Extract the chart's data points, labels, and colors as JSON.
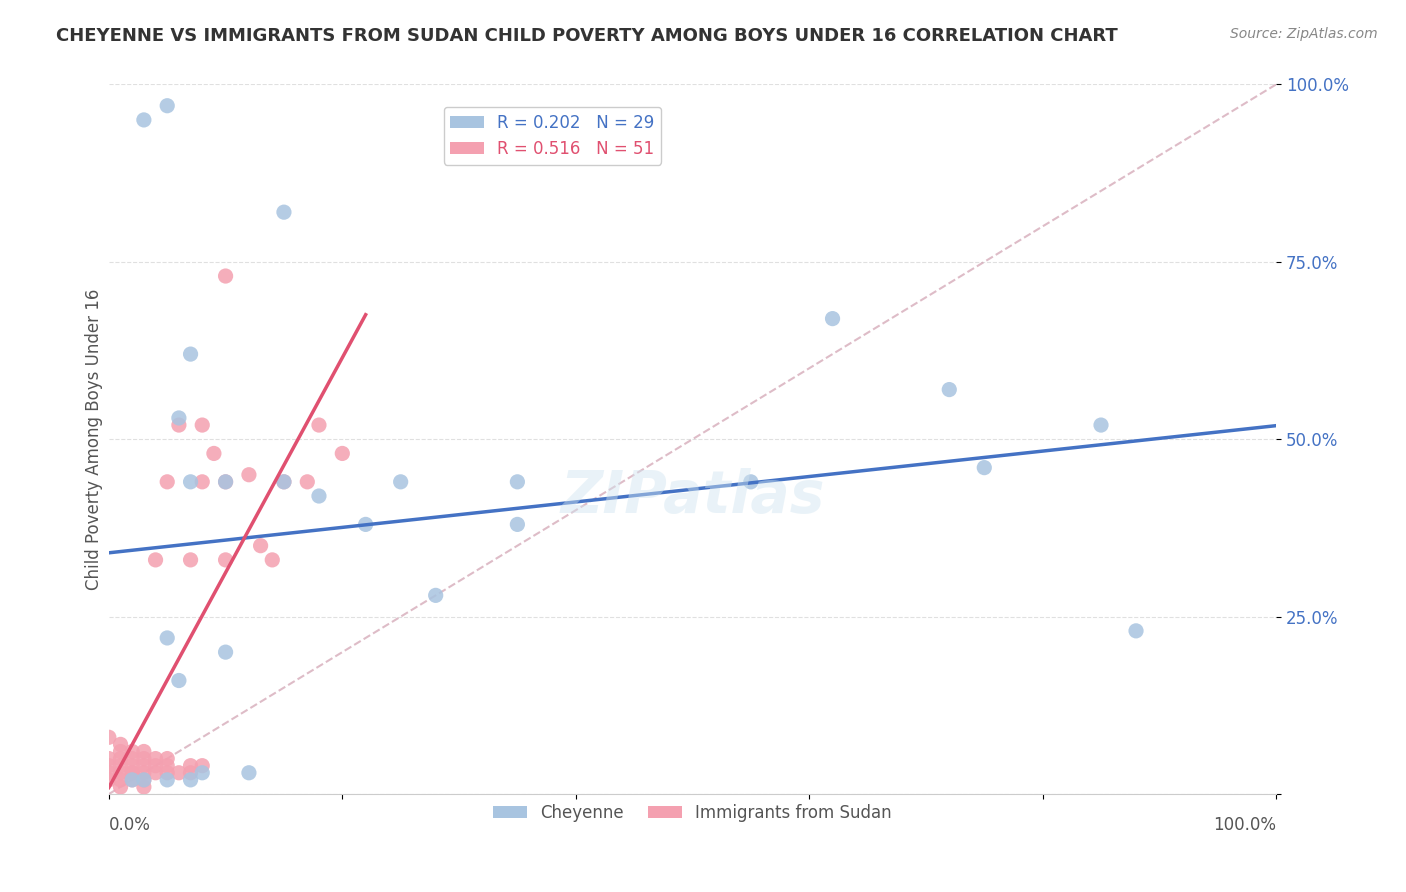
{
  "title": "CHEYENNE VS IMMIGRANTS FROM SUDAN CHILD POVERTY AMONG BOYS UNDER 16 CORRELATION CHART",
  "source": "Source: ZipAtlas.com",
  "ylabel": "Child Poverty Among Boys Under 16",
  "xlim": [
    0.0,
    1.0
  ],
  "ylim": [
    0.0,
    1.0
  ],
  "yticks": [
    0.0,
    0.25,
    0.5,
    0.75,
    1.0
  ],
  "ytick_labels": [
    "",
    "25.0%",
    "50.0%",
    "75.0%",
    "100.0%"
  ],
  "xticks": [
    0.0,
    0.2,
    0.4,
    0.6,
    0.8,
    1.0
  ],
  "cheyenne_R": 0.202,
  "cheyenne_N": 29,
  "sudan_R": 0.516,
  "sudan_N": 51,
  "cheyenne_color": "#a8c4e0",
  "sudan_color": "#f4a0b0",
  "cheyenne_line_color": "#4472c4",
  "sudan_line_color": "#e05070",
  "diagonal_color": "#d0a0b0",
  "background_color": "#ffffff",
  "grid_color": "#e0e0e0",
  "cheyenne_points_x": [
    0.02,
    0.03,
    0.03,
    0.05,
    0.05,
    0.05,
    0.06,
    0.06,
    0.07,
    0.07,
    0.07,
    0.08,
    0.1,
    0.1,
    0.12,
    0.15,
    0.15,
    0.18,
    0.22,
    0.25,
    0.28,
    0.35,
    0.35,
    0.55,
    0.62,
    0.72,
    0.75,
    0.85,
    0.88
  ],
  "cheyenne_points_y": [
    0.02,
    0.02,
    0.95,
    0.97,
    0.02,
    0.22,
    0.16,
    0.53,
    0.02,
    0.44,
    0.62,
    0.03,
    0.44,
    0.2,
    0.03,
    0.82,
    0.44,
    0.42,
    0.38,
    0.44,
    0.28,
    0.44,
    0.38,
    0.44,
    0.67,
    0.57,
    0.46,
    0.52,
    0.23
  ],
  "sudan_points_x": [
    0.0,
    0.0,
    0.0,
    0.0,
    0.0,
    0.01,
    0.01,
    0.01,
    0.01,
    0.01,
    0.01,
    0.01,
    0.02,
    0.02,
    0.02,
    0.02,
    0.02,
    0.02,
    0.03,
    0.03,
    0.03,
    0.03,
    0.03,
    0.03,
    0.04,
    0.04,
    0.04,
    0.04,
    0.05,
    0.05,
    0.05,
    0.05,
    0.06,
    0.06,
    0.07,
    0.07,
    0.07,
    0.08,
    0.08,
    0.08,
    0.09,
    0.1,
    0.1,
    0.1,
    0.12,
    0.13,
    0.14,
    0.15,
    0.17,
    0.18,
    0.2
  ],
  "sudan_points_y": [
    0.02,
    0.03,
    0.04,
    0.05,
    0.08,
    0.01,
    0.02,
    0.03,
    0.04,
    0.05,
    0.06,
    0.07,
    0.02,
    0.03,
    0.03,
    0.04,
    0.05,
    0.06,
    0.01,
    0.02,
    0.03,
    0.04,
    0.05,
    0.06,
    0.03,
    0.04,
    0.05,
    0.33,
    0.03,
    0.04,
    0.05,
    0.44,
    0.03,
    0.52,
    0.03,
    0.04,
    0.33,
    0.04,
    0.44,
    0.52,
    0.48,
    0.33,
    0.44,
    0.73,
    0.45,
    0.35,
    0.33,
    0.44,
    0.44,
    0.52,
    0.48
  ],
  "legend_label_cheyenne": "Cheyenne",
  "legend_label_sudan": "Immigrants from Sudan"
}
